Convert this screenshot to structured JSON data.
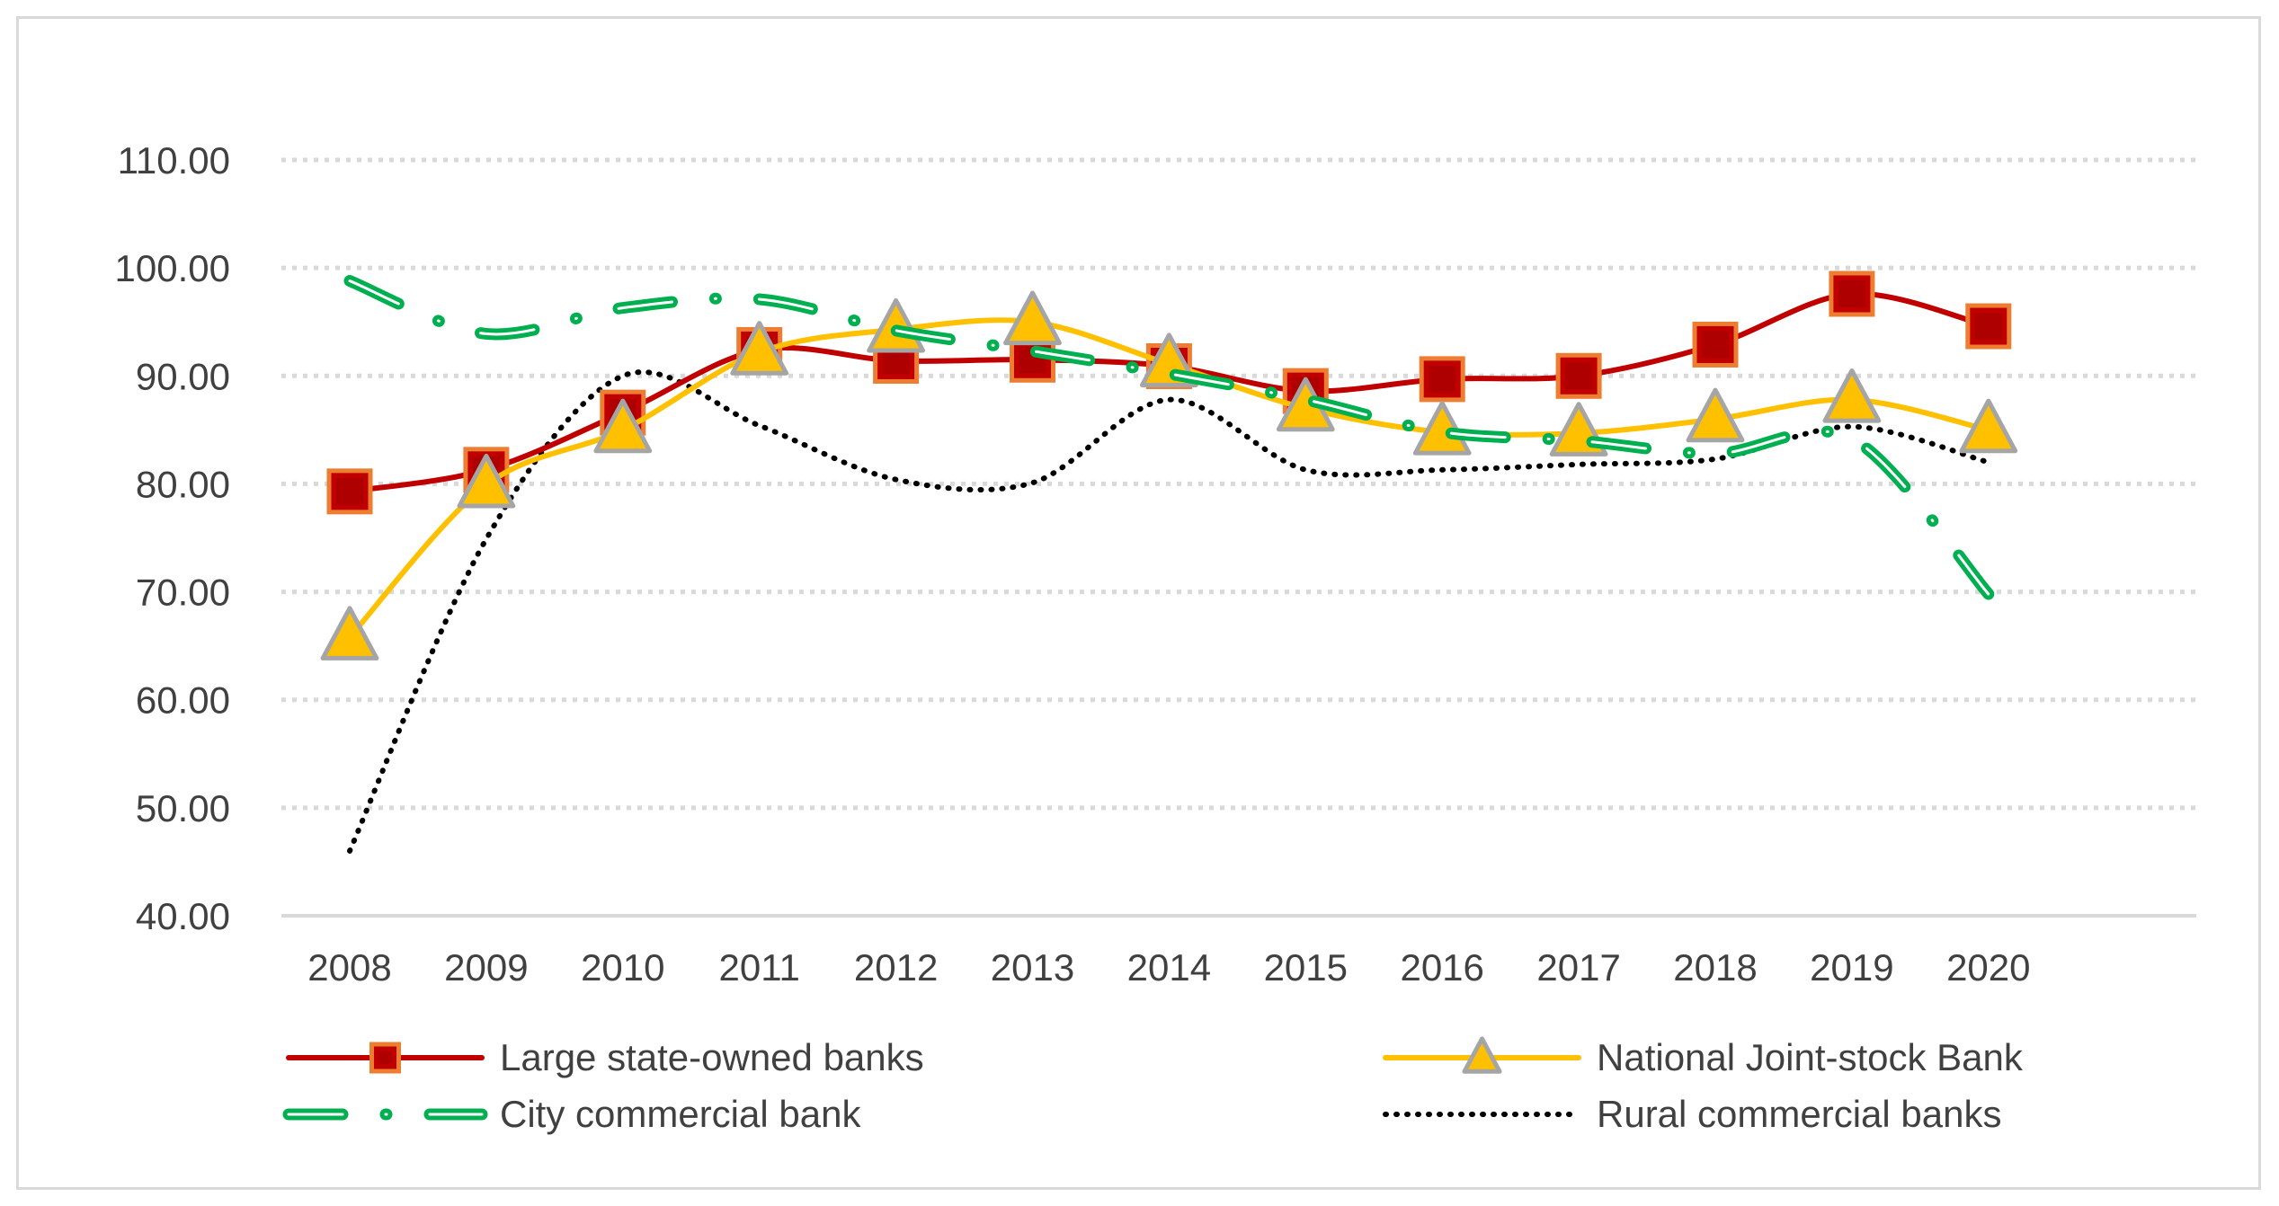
{
  "chart_data": {
    "type": "line",
    "title": "",
    "xlabel": "",
    "ylabel": "",
    "ylim": [
      40,
      110
    ],
    "yticks": [
      40,
      50,
      60,
      70,
      80,
      90,
      100,
      110
    ],
    "ytick_labels": [
      "40.00",
      "50.00",
      "60.00",
      "70.00",
      "80.00",
      "90.00",
      "100.00",
      "110.00"
    ],
    "categories": [
      "2008",
      "2009",
      "2010",
      "2011",
      "2012",
      "2013",
      "2014",
      "2015",
      "2016",
      "2017",
      "2018",
      "2019",
      "2020"
    ],
    "grid": "horizontal dotted",
    "legend_position": "bottom",
    "series": [
      {
        "name": "Large state-owned banks",
        "values": [
          79.3,
          81.3,
          86.6,
          92.4,
          91.4,
          91.5,
          90.9,
          88.6,
          89.7,
          90.0,
          92.9,
          97.6,
          94.6
        ],
        "color": "#c00000",
        "marker": "square",
        "marker_fill": "#c00000",
        "marker_stroke": "#ed7d31",
        "line_style": "solid"
      },
      {
        "name": "National Joint-stock Bank",
        "values": [
          65.8,
          79.9,
          85.0,
          92.2,
          94.3,
          95.0,
          91.1,
          87.0,
          84.8,
          84.7,
          86.0,
          87.8,
          85.0
        ],
        "color": "#ffc000",
        "marker": "triangle",
        "marker_fill": "#ffc000",
        "marker_stroke": "#a5a5a5",
        "line_style": "solid"
      },
      {
        "name": "City commercial bank",
        "values": [
          98.8,
          93.9,
          96.3,
          97.1,
          94.2,
          92.3,
          90.2,
          87.8,
          84.8,
          84.0,
          82.8,
          84.2,
          69.8
        ],
        "color": "#00b050",
        "marker": "none",
        "line_style": "long-dash-dot"
      },
      {
        "name": "Rural commercial banks",
        "values": [
          46.0,
          74.9,
          90.0,
          85.4,
          80.4,
          80.1,
          87.8,
          81.3,
          81.3,
          81.8,
          82.3,
          85.3,
          82.0
        ],
        "color": "#000000",
        "marker": "none",
        "line_style": "dotted"
      }
    ]
  }
}
